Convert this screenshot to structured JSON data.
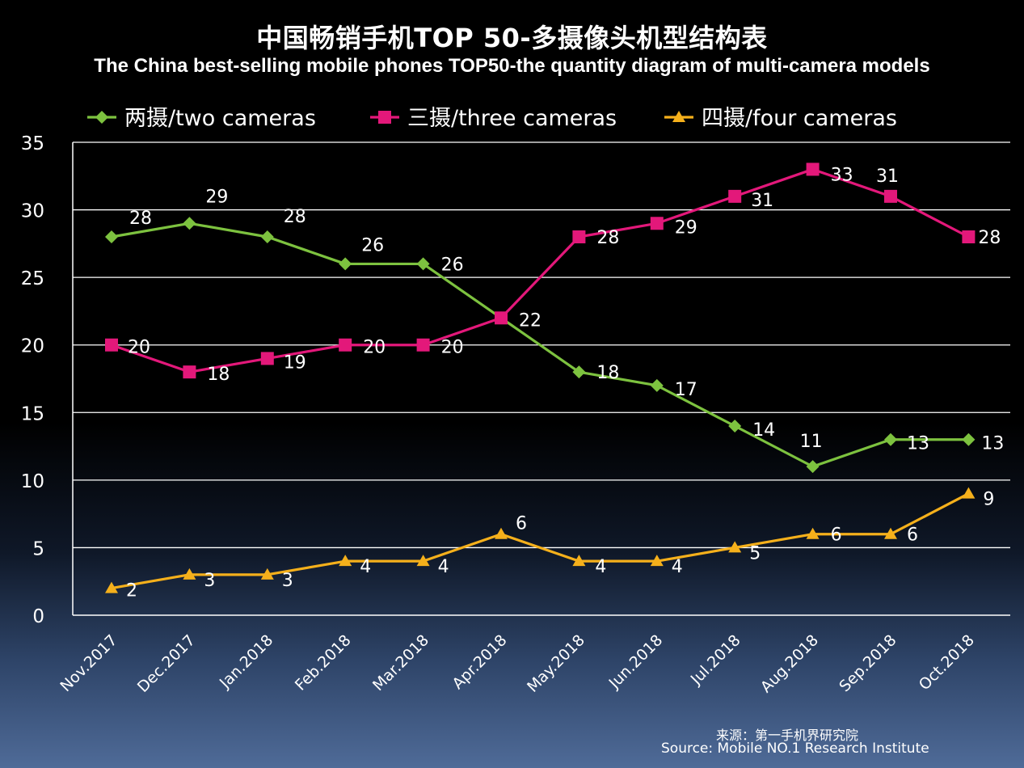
{
  "chart_data": {
    "type": "line",
    "title": "中国畅销手机TOP 50-多摄像头机型结构表",
    "subtitle": "The China best-selling mobile phones TOP50-the quantity diagram of multi-camera models",
    "categories": [
      "Nov.2017",
      "Dec.2017",
      "Jan.2018",
      "Feb.2018",
      "Mar.2018",
      "Apr.2018",
      "May.2018",
      "Jun.2018",
      "Jul.2018",
      "Aug.2018",
      "Sep.2018",
      "Oct.2018"
    ],
    "series": [
      {
        "name": "两摄/two cameras",
        "color": "#7dc23f",
        "marker": "diamond",
        "values": [
          28,
          29,
          28,
          26,
          26,
          22,
          18,
          17,
          14,
          11,
          13,
          13
        ]
      },
      {
        "name": "三摄/three cameras",
        "color": "#e3187a",
        "marker": "square",
        "values": [
          20,
          18,
          19,
          20,
          20,
          22,
          28,
          29,
          31,
          33,
          31,
          28
        ]
      },
      {
        "name": "四摄/four cameras",
        "color": "#f5b01b",
        "marker": "triangle",
        "values": [
          2,
          3,
          3,
          4,
          4,
          6,
          4,
          4,
          5,
          6,
          6,
          9
        ]
      }
    ],
    "ylim": [
      0,
      35
    ],
    "yticks": [
      0,
      5,
      10,
      15,
      20,
      25,
      30,
      35
    ],
    "grid": true,
    "legend": "top",
    "xlabel": "",
    "ylabel": ""
  },
  "source": {
    "line_cn": "来源：第一手机界研究院",
    "line_en": "Source: Mobile NO.1 Research Institute"
  }
}
